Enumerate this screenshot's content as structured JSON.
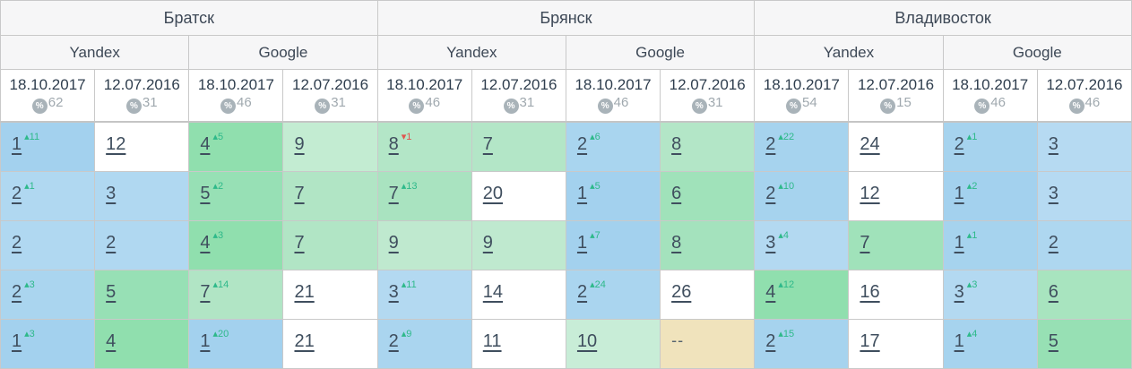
{
  "icons": {
    "up_arrow": "▴",
    "down_arrow": "▾",
    "percent_icon": "%"
  },
  "colors": {
    "up": "#2eb98a",
    "down": "#e0534e",
    "border": "#c9c9c9",
    "header_bg": "#f6f6f7",
    "text": "#3d4856",
    "link": "#3f4e5e",
    "badge": "#a9b3b9",
    "muted": "#a0a9af",
    "date_text": "#2f3e4e",
    "dash": "#55626e"
  },
  "header": {
    "cities": [
      {
        "name": "Братск",
        "engines": [
          {
            "name": "Yandex",
            "dates": [
              {
                "date": "18.10.2017",
                "visibility": "62"
              },
              {
                "date": "12.07.2016",
                "visibility": "31"
              }
            ]
          },
          {
            "name": "Google",
            "dates": [
              {
                "date": "18.10.2017",
                "visibility": "46"
              },
              {
                "date": "12.07.2016",
                "visibility": "31"
              }
            ]
          }
        ]
      },
      {
        "name": "Брянск",
        "engines": [
          {
            "name": "Yandex",
            "dates": [
              {
                "date": "18.10.2017",
                "visibility": "46"
              },
              {
                "date": "12.07.2016",
                "visibility": "31"
              }
            ]
          },
          {
            "name": "Google",
            "dates": [
              {
                "date": "18.10.2017",
                "visibility": "46"
              },
              {
                "date": "12.07.2016",
                "visibility": "31"
              }
            ]
          }
        ]
      },
      {
        "name": "Владивосток",
        "engines": [
          {
            "name": "Yandex",
            "dates": [
              {
                "date": "18.10.2017",
                "visibility": "54"
              },
              {
                "date": "12.07.2016",
                "visibility": "15"
              }
            ]
          },
          {
            "name": "Google",
            "dates": [
              {
                "date": "18.10.2017",
                "visibility": "46"
              },
              {
                "date": "12.07.2016",
                "visibility": "46"
              }
            ]
          }
        ]
      }
    ]
  },
  "body": {
    "rows": [
      {
        "cells": [
          {
            "v": "1",
            "dir": "up",
            "chg": "11",
            "bg": "#a3d1ee"
          },
          {
            "v": "12",
            "bg": "#ffffff"
          },
          {
            "v": "4",
            "dir": "up",
            "chg": "5",
            "bg": "#90dfae"
          },
          {
            "v": "9",
            "bg": "#c3ecd2"
          },
          {
            "v": "8",
            "dir": "down",
            "chg": "1",
            "bg": "#b3e6c7"
          },
          {
            "v": "7",
            "bg": "#b3e6c7"
          },
          {
            "v": "2",
            "dir": "up",
            "chg": "6",
            "bg": "#a9d5ef"
          },
          {
            "v": "8",
            "bg": "#b3e6c7"
          },
          {
            "v": "2",
            "dir": "up",
            "chg": "22",
            "bg": "#a6d3ee"
          },
          {
            "v": "24",
            "bg": "#ffffff"
          },
          {
            "v": "2",
            "dir": "up",
            "chg": "1",
            "bg": "#a6d3ee"
          },
          {
            "v": "3",
            "bg": "#b6daf2"
          }
        ]
      },
      {
        "cells": [
          {
            "v": "2",
            "dir": "up",
            "chg": "1",
            "bg": "#b0d8f1"
          },
          {
            "v": "3",
            "bg": "#b0d8f1"
          },
          {
            "v": "5",
            "dir": "up",
            "chg": "2",
            "bg": "#97e0b5"
          },
          {
            "v": "7",
            "bg": "#b1e5c5"
          },
          {
            "v": "7",
            "dir": "up",
            "chg": "13",
            "bg": "#a9e3c0"
          },
          {
            "v": "20",
            "bg": "#ffffff"
          },
          {
            "v": "1",
            "dir": "up",
            "chg": "5",
            "bg": "#a3d1ee"
          },
          {
            "v": "6",
            "bg": "#a0e2ba"
          },
          {
            "v": "2",
            "dir": "up",
            "chg": "10",
            "bg": "#a6d3ee"
          },
          {
            "v": "12",
            "bg": "#ffffff"
          },
          {
            "v": "1",
            "dir": "up",
            "chg": "2",
            "bg": "#a3d1ee"
          },
          {
            "v": "3",
            "bg": "#b6daf2"
          }
        ]
      },
      {
        "cells": [
          {
            "v": "2",
            "bg": "#b0d8f1"
          },
          {
            "v": "2",
            "bg": "#b0d8f1"
          },
          {
            "v": "4",
            "dir": "up",
            "chg": "3",
            "bg": "#90dfae"
          },
          {
            "v": "7",
            "bg": "#b1e5c5"
          },
          {
            "v": "9",
            "bg": "#bfe9cf"
          },
          {
            "v": "9",
            "bg": "#bfe9cf"
          },
          {
            "v": "1",
            "dir": "up",
            "chg": "7",
            "bg": "#a3d1ee"
          },
          {
            "v": "8",
            "bg": "#a4e2bd"
          },
          {
            "v": "3",
            "dir": "up",
            "chg": "4",
            "bg": "#b3d9f1"
          },
          {
            "v": "7",
            "bg": "#a0e2ba"
          },
          {
            "v": "1",
            "dir": "up",
            "chg": "1",
            "bg": "#a6d3ee"
          },
          {
            "v": "2",
            "bg": "#aed7f0"
          }
        ]
      },
      {
        "cells": [
          {
            "v": "2",
            "dir": "up",
            "chg": "3",
            "bg": "#aad5ef"
          },
          {
            "v": "5",
            "bg": "#97e0b5"
          },
          {
            "v": "7",
            "dir": "up",
            "chg": "14",
            "bg": "#b1e5c5"
          },
          {
            "v": "21",
            "bg": "#ffffff"
          },
          {
            "v": "3",
            "dir": "up",
            "chg": "11",
            "bg": "#b3d9f1"
          },
          {
            "v": "14",
            "bg": "#ffffff"
          },
          {
            "v": "2",
            "dir": "up",
            "chg": "24",
            "bg": "#aad5ef"
          },
          {
            "v": "26",
            "bg": "#ffffff"
          },
          {
            "v": "4",
            "dir": "up",
            "chg": "12",
            "bg": "#90dfae"
          },
          {
            "v": "16",
            "bg": "#ffffff"
          },
          {
            "v": "3",
            "dir": "up",
            "chg": "3",
            "bg": "#b3d9f1"
          },
          {
            "v": "6",
            "bg": "#a8e4bf"
          }
        ]
      },
      {
        "cells": [
          {
            "v": "1",
            "dir": "up",
            "chg": "3",
            "bg": "#a3d1ee"
          },
          {
            "v": "4",
            "bg": "#90dfae"
          },
          {
            "v": "1",
            "dir": "up",
            "chg": "20",
            "bg": "#a3d1ee"
          },
          {
            "v": "21",
            "bg": "#ffffff"
          },
          {
            "v": "2",
            "dir": "up",
            "chg": "9",
            "bg": "#aad5ef"
          },
          {
            "v": "11",
            "bg": "#ffffff"
          },
          {
            "v": "10",
            "bg": "#c8edd7"
          },
          {
            "v": "--",
            "bg": "#f0e3bc"
          },
          {
            "v": "2",
            "dir": "up",
            "chg": "15",
            "bg": "#a6d3ee"
          },
          {
            "v": "17",
            "bg": "#ffffff"
          },
          {
            "v": "1",
            "dir": "up",
            "chg": "4",
            "bg": "#a6d3ee"
          },
          {
            "v": "5",
            "bg": "#97e0b4"
          }
        ]
      }
    ]
  }
}
